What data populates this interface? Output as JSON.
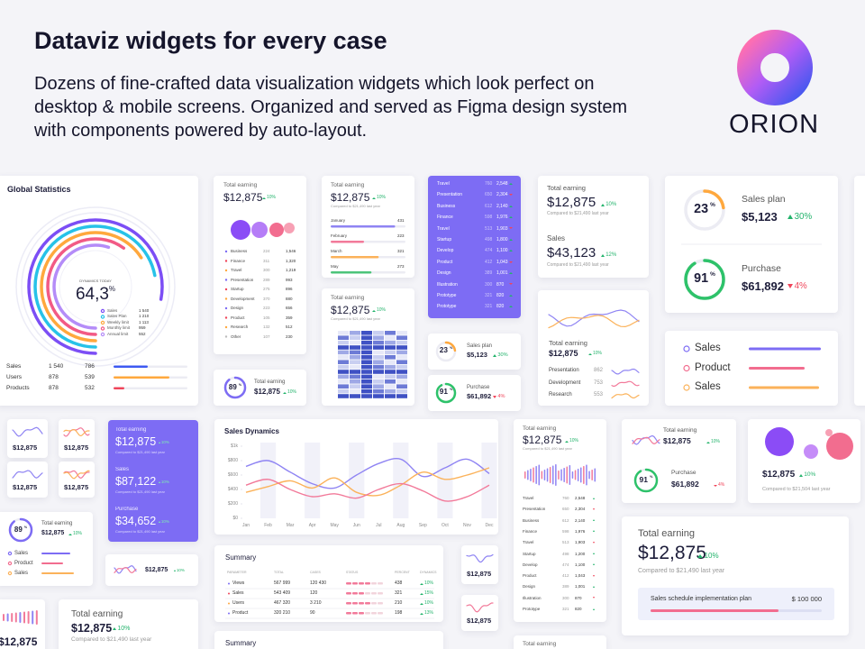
{
  "header": {
    "title": "Dataviz widgets for every case",
    "description": "Dozens of fine-crafted data visualization widgets which look perfect on desktop & mobile screens. Organized and served as Figma design system with components powered by auto-layout.",
    "brand": "ORION"
  },
  "global_statistics": {
    "title": "Global Statistics",
    "caption": "DYNAMICS TODAY",
    "value": "64,3",
    "unit": "%",
    "legend": [
      [
        "Sales",
        "1 540"
      ],
      [
        "Sales Plan",
        "1 210"
      ],
      [
        "Weekly limit",
        "1 113"
      ],
      [
        "Monthly limit",
        "959"
      ],
      [
        "Annual limit",
        "552"
      ]
    ],
    "rows": [
      [
        "Sales",
        "1 540",
        "786"
      ],
      [
        "Users",
        "878",
        "539"
      ],
      [
        "Products",
        "878",
        "532"
      ]
    ]
  },
  "earning_list": {
    "title": "Total earning",
    "value": "$12,875",
    "change": "10%",
    "rows": [
      [
        "Business",
        "224",
        "1,546"
      ],
      [
        "Finance",
        "311",
        "1,320"
      ],
      [
        "Travel",
        "300",
        "1,219"
      ],
      [
        "Presentation",
        "289",
        "993"
      ],
      [
        "Startup",
        "275",
        "896"
      ],
      [
        "Development",
        "370",
        "880"
      ],
      [
        "Design",
        "223",
        "656"
      ],
      [
        "Product",
        "105",
        "359"
      ],
      [
        "Research",
        "132",
        "512"
      ],
      [
        "Other",
        "107",
        "230"
      ]
    ]
  },
  "earning_bars": {
    "title": "Total earning",
    "value": "$12,875",
    "change": "10%",
    "note": "Compared to $21,490 last year",
    "bars": [
      [
        "January",
        "431"
      ],
      [
        "February",
        "223"
      ],
      [
        "March",
        "321"
      ],
      [
        "May",
        "273"
      ]
    ]
  },
  "earning_heatmap": {
    "title": "Total earning",
    "value": "$12,875",
    "change": "10%",
    "note": "Compared to $21,490 last year"
  },
  "purple_list": {
    "rows": [
      [
        "Travel",
        "760",
        "2,548"
      ],
      [
        "Presentation",
        "650",
        "2,304"
      ],
      [
        "Business",
        "612",
        "2,140"
      ],
      [
        "Finance",
        "598",
        "1,976"
      ],
      [
        "Travel",
        "513",
        "1,903"
      ],
      [
        "Startup",
        "498",
        "1,800"
      ],
      [
        "Develop",
        "474",
        "1,100"
      ],
      [
        "Product",
        "412",
        "1,043"
      ],
      [
        "Design",
        "389",
        "1,001"
      ],
      [
        "Illustration",
        "300",
        "870"
      ],
      [
        "Prototype",
        "321",
        "820"
      ],
      [
        "Prototype",
        "321",
        "820"
      ]
    ]
  },
  "earning_sales": {
    "title": "Total earning",
    "value": "$12,875",
    "change": "10%",
    "note": "Compared to $21,490 last year",
    "sales_title": "Sales",
    "sales_value": "$43,123",
    "sales_change": "12%",
    "sales_note": "Compared to $21,490 last year"
  },
  "earning_lines": {
    "title": "Total earning",
    "value": "$12,875",
    "change": "10%",
    "rows": [
      [
        "Presentation",
        "862"
      ],
      [
        "Development",
        "753"
      ],
      [
        "Research",
        "553"
      ]
    ]
  },
  "plan_small": {
    "plan_pct": "23",
    "plan_title": "Sales plan",
    "plan_value": "$5,123",
    "plan_change": "30%",
    "purchase_pct": "91",
    "purchase_title": "Purchase",
    "purchase_value": "$61,892",
    "purchase_change": "4%",
    "unit": "%"
  },
  "ring_earning": {
    "pct": "89",
    "unit": "%",
    "title": "Total earning",
    "value": "$12,875",
    "change": "10%"
  },
  "plan_big": {
    "plan_pct": "23",
    "plan_title": "Sales plan",
    "plan_value": "$5,123",
    "plan_change": "30%",
    "purchase_pct": "91",
    "purchase_title": "Purchase",
    "purchase_value": "$61,892",
    "purchase_change": "4%",
    "unit": "%"
  },
  "legend_card": {
    "items": [
      "Sales",
      "Product",
      "Sales"
    ]
  },
  "sparklines": {
    "values": [
      "$12,875",
      "$12,875",
      "$12,875",
      "$12,875",
      "$12,875",
      "$12,875"
    ]
  },
  "purple_stats": {
    "items": [
      {
        "title": "Total earning",
        "value": "$12,875",
        "change": "10%",
        "note": "Compared to $21,490 last year"
      },
      {
        "title": "Sales",
        "value": "$87,122",
        "change": "10%",
        "note": "Compared to $21,490 last year"
      },
      {
        "title": "Purchase",
        "value": "$34,652",
        "change": "10%",
        "note": "Compared to $21,490 last year"
      }
    ]
  },
  "sales_dynamics": {
    "title": "Sales Dynamics",
    "ylim": [
      0,
      1000
    ],
    "yticks": [
      {
        "value": 1000,
        "label": "$1k"
      },
      {
        "value": 800,
        "label": "$800"
      },
      {
        "value": 600,
        "label": "$600"
      },
      {
        "value": 400,
        "label": "$400"
      },
      {
        "value": 200,
        "label": "$200"
      },
      {
        "value": 0,
        "label": "$0"
      }
    ],
    "months": [
      "Jan",
      "Feb",
      "Mar",
      "Apr",
      "May",
      "Jun",
      "Jul",
      "Aug",
      "Sep",
      "Oct",
      "Nov",
      "Dec"
    ],
    "series": [
      {
        "color": "#8f84f3",
        "values": [
          720,
          800,
          640,
          480,
          420,
          600,
          760,
          820,
          580,
          700,
          820,
          620
        ]
      },
      {
        "color": "#fbb25a",
        "values": [
          360,
          440,
          520,
          420,
          560,
          360,
          320,
          460,
          640,
          540,
          600,
          700
        ]
      },
      {
        "color": "#f27a9a",
        "values": [
          460,
          540,
          400,
          300,
          340,
          280,
          400,
          480,
          380,
          240,
          300,
          460
        ]
      }
    ]
  },
  "purple_bars_list": {
    "title": "Total earning",
    "value": "$12,875",
    "change": "10%",
    "note": "Compared to $21,490 last year",
    "rows": [
      [
        "Travel",
        "760",
        "2,548"
      ],
      [
        "Presentation",
        "650",
        "2,304"
      ],
      [
        "Business",
        "612",
        "2,140"
      ],
      [
        "Finance",
        "598",
        "1,976"
      ],
      [
        "Travel",
        "513",
        "1,903"
      ],
      [
        "Startup",
        "498",
        "1,200"
      ],
      [
        "Develop",
        "474",
        "1,100"
      ],
      [
        "Product",
        "412",
        "1,043"
      ],
      [
        "Design",
        "389",
        "1,001"
      ],
      [
        "Illustration",
        "300",
        "870"
      ],
      [
        "Prototype",
        "321",
        "820"
      ]
    ]
  },
  "plan_mid": {
    "title": "Total earning",
    "value": "$12,875",
    "change": "10%",
    "purchase_pct": "91",
    "unit": "%",
    "purchase_title": "Purchase",
    "purchase_value": "$61,892",
    "purchase_change": "4%"
  },
  "bubbles_card": {
    "value": "$12,875",
    "change": "10%",
    "note": "Compared to $21,504 last year"
  },
  "earning_big": {
    "title": "Total earning",
    "value": "$12,875",
    "change": "10%",
    "note": "Compared to $21,490 last year",
    "plan_label": "Sales schedule implementation plan",
    "plan_value": "$ 100 000"
  },
  "summary": {
    "title": "Summary",
    "columns": [
      "PARAMETER",
      "TOTAL",
      "CASES",
      "STATUS",
      "PERCENT",
      "DYNAMICS"
    ],
    "rows": [
      [
        "Views",
        "567 999",
        "120 430",
        "438",
        "10%"
      ],
      [
        "Sales",
        "543 409",
        "120",
        "321",
        "15%"
      ],
      [
        "Users",
        "467 320",
        "3 210",
        "210",
        "10%"
      ],
      [
        "Product",
        "320 210",
        "90",
        "198",
        "13%"
      ]
    ]
  },
  "ring_small": {
    "pct": "89",
    "unit": "%",
    "title": "Total earning",
    "value": "$12,875",
    "change": "10%",
    "items": [
      "Sales",
      "Product",
      "Sales"
    ]
  },
  "mini_earning": {
    "value": "$12,875",
    "change": "10%"
  },
  "bottom": {
    "earning_title": "Total earning",
    "earning_value": "$12,875",
    "earning_change": "10%",
    "earning_note": "Compared to $21,490 last year",
    "bars_value": "$12,875",
    "summary_title": "Summary",
    "list_title": "Total earning"
  }
}
